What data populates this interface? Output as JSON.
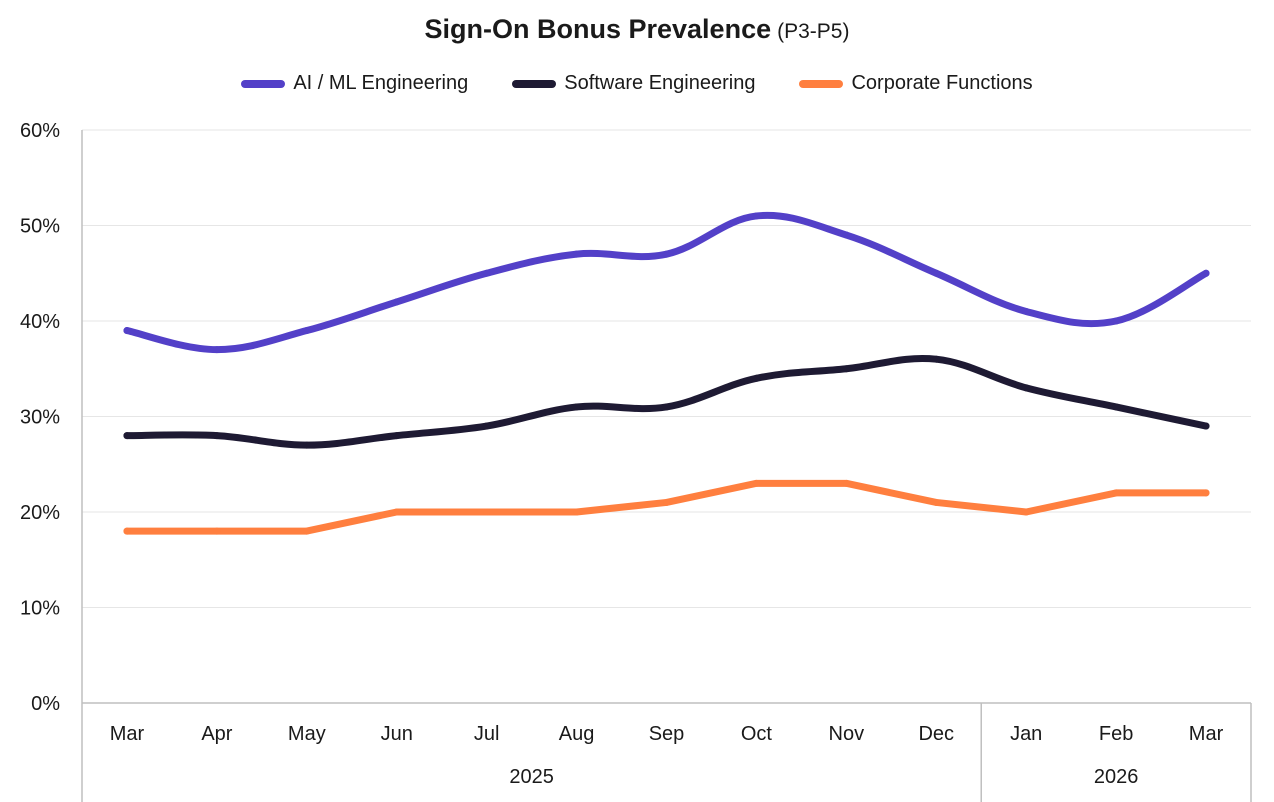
{
  "chart_data": {
    "type": "line",
    "title": "Sign-On Bonus Prevalence",
    "subtitle": "(P3-P5)",
    "categories": [
      "Mar",
      "Apr",
      "May",
      "Jun",
      "Jul",
      "Aug",
      "Sep",
      "Oct",
      "Nov",
      "Dec",
      "Jan",
      "Feb",
      "Mar"
    ],
    "year_groups": [
      {
        "label": "2025",
        "start": 0,
        "end": 9
      },
      {
        "label": "2026",
        "start": 10,
        "end": 12
      }
    ],
    "ylim": [
      0,
      60
    ],
    "yticks": [
      "0%",
      "10%",
      "20%",
      "30%",
      "40%",
      "50%",
      "60%"
    ],
    "ytick_values": [
      0,
      10,
      20,
      30,
      40,
      50,
      60
    ],
    "grid": true,
    "legend_position": "top-center",
    "series": [
      {
        "name": "AI / ML Engineering",
        "color": "#5340c8",
        "values": [
          39,
          37,
          39,
          42,
          45,
          47,
          47,
          51,
          49,
          45,
          41,
          40,
          45
        ]
      },
      {
        "name": "Software Engineering",
        "color": "#1e1a33",
        "values": [
          28,
          28,
          27,
          28,
          29,
          31,
          31,
          34,
          35,
          36,
          33,
          31,
          29
        ]
      },
      {
        "name": "Corporate Functions",
        "color": "#ff7f3f",
        "values": [
          18,
          18,
          18,
          20,
          20,
          20,
          21,
          23,
          23,
          21,
          20,
          22,
          22
        ]
      }
    ]
  }
}
